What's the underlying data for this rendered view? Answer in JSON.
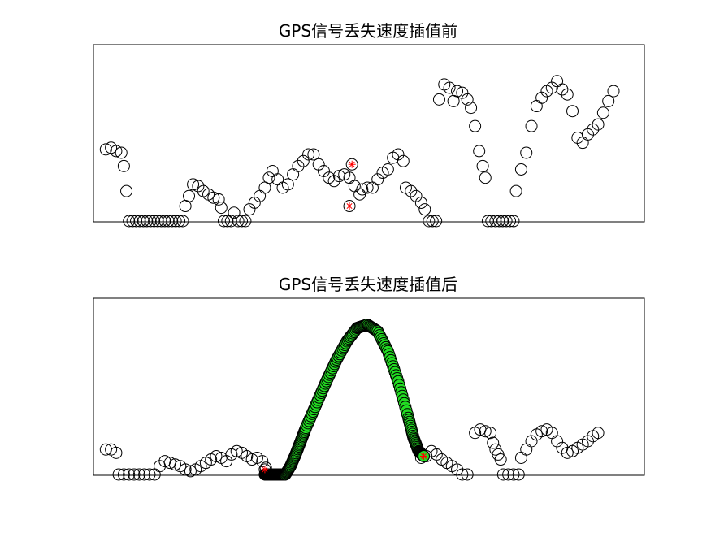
{
  "chart_data": [
    {
      "type": "scatter",
      "title": "GPS信号丢失速度插值前",
      "xlim": [
        0,
        10
      ],
      "ylim": [
        0,
        10
      ],
      "marker": "circle-open",
      "colors": {
        "marker": "#000000",
        "highlight": "#ff0000"
      },
      "series": [
        {
          "points": [
            [
              0.1,
              4.3
            ],
            [
              0.2,
              4.4
            ],
            [
              0.3,
              4.2
            ],
            [
              0.4,
              4.1
            ],
            [
              0.45,
              3.3
            ],
            [
              0.5,
              1.8
            ],
            [
              0.55,
              0
            ],
            [
              0.62,
              0
            ],
            [
              0.69,
              0
            ],
            [
              0.76,
              0
            ],
            [
              0.83,
              0
            ],
            [
              0.9,
              0
            ],
            [
              0.97,
              0
            ],
            [
              1.04,
              0
            ],
            [
              1.11,
              0
            ],
            [
              1.18,
              0
            ],
            [
              1.25,
              0
            ],
            [
              1.32,
              0
            ],
            [
              1.39,
              0
            ],
            [
              1.46,
              0
            ],
            [
              1.53,
              0
            ],
            [
              1.6,
              0
            ],
            [
              1.65,
              0.9
            ],
            [
              1.72,
              1.5
            ],
            [
              1.8,
              2.2
            ],
            [
              1.9,
              2.1
            ],
            [
              2.0,
              1.8
            ],
            [
              2.1,
              1.6
            ],
            [
              2.2,
              1.4
            ],
            [
              2.3,
              1.3
            ],
            [
              2.35,
              0.8
            ],
            [
              2.4,
              0
            ],
            [
              2.47,
              0
            ],
            [
              2.54,
              0
            ],
            [
              2.6,
              0.5
            ],
            [
              2.68,
              0
            ],
            [
              2.75,
              0
            ],
            [
              2.82,
              0
            ],
            [
              2.9,
              0.7
            ],
            [
              3.0,
              1.1
            ],
            [
              3.1,
              1.5
            ],
            [
              3.2,
              2.0
            ],
            [
              3.28,
              2.6
            ],
            [
              3.35,
              3.0
            ],
            [
              3.45,
              2.5
            ],
            [
              3.55,
              2.0
            ],
            [
              3.65,
              2.2
            ],
            [
              3.75,
              2.8
            ],
            [
              3.85,
              3.3
            ],
            [
              3.95,
              3.6
            ],
            [
              4.05,
              4.0
            ],
            [
              4.15,
              4.0
            ],
            [
              4.25,
              3.4
            ],
            [
              4.35,
              3.0
            ],
            [
              4.45,
              2.6
            ],
            [
              4.55,
              2.4
            ],
            [
              4.65,
              2.7
            ],
            [
              4.75,
              2.8
            ],
            [
              4.85,
              2.6
            ],
            [
              4.95,
              2.1
            ],
            [
              5.05,
              1.6
            ],
            [
              5.1,
              1.9
            ],
            [
              5.2,
              2.0
            ],
            [
              5.3,
              2.0
            ],
            [
              5.4,
              2.5
            ],
            [
              5.5,
              2.9
            ],
            [
              5.6,
              3.1
            ],
            [
              5.7,
              3.8
            ],
            [
              5.8,
              4.0
            ],
            [
              5.9,
              3.6
            ],
            [
              5.95,
              2.0
            ],
            [
              6.05,
              1.8
            ],
            [
              6.15,
              1.5
            ],
            [
              6.25,
              1.1
            ],
            [
              6.32,
              0.7
            ],
            [
              6.4,
              0
            ],
            [
              6.47,
              0
            ],
            [
              6.54,
              0
            ],
            [
              6.6,
              7.3
            ],
            [
              6.7,
              8.2
            ],
            [
              6.8,
              8.0
            ],
            [
              6.88,
              7.2
            ],
            [
              6.95,
              7.8
            ],
            [
              7.05,
              7.7
            ],
            [
              7.15,
              7.3
            ],
            [
              7.22,
              6.8
            ],
            [
              7.3,
              5.7
            ],
            [
              7.38,
              4.2
            ],
            [
              7.45,
              3.3
            ],
            [
              7.5,
              2.6
            ],
            [
              7.55,
              0
            ],
            [
              7.62,
              0
            ],
            [
              7.7,
              0
            ],
            [
              7.77,
              0
            ],
            [
              7.84,
              0
            ],
            [
              7.91,
              0
            ],
            [
              7.98,
              0
            ],
            [
              8.05,
              0
            ],
            [
              8.1,
              1.8
            ],
            [
              8.2,
              3.1
            ],
            [
              8.3,
              4.1
            ],
            [
              8.4,
              5.7
            ],
            [
              8.5,
              6.9
            ],
            [
              8.6,
              7.4
            ],
            [
              8.7,
              7.8
            ],
            [
              8.8,
              8.0
            ],
            [
              8.9,
              8.4
            ],
            [
              9.0,
              7.9
            ],
            [
              9.1,
              7.6
            ],
            [
              9.2,
              6.6
            ],
            [
              9.3,
              5.0
            ],
            [
              9.4,
              4.7
            ],
            [
              9.5,
              5.2
            ],
            [
              9.6,
              5.5
            ],
            [
              9.7,
              5.8
            ],
            [
              9.8,
              6.5
            ],
            [
              9.9,
              7.2
            ],
            [
              10.0,
              7.8
            ]
          ]
        },
        {
          "highlight": true,
          "points": [
            [
              4.9,
              3.4
            ],
            [
              4.85,
              0.9
            ]
          ]
        }
      ]
    },
    {
      "type": "scatter",
      "title": "GPS信号丢失速度插值后",
      "xlim": [
        0,
        10
      ],
      "ylim": [
        0,
        10
      ],
      "marker": "circle-open",
      "colors": {
        "marker": "#000000",
        "interpolated": "#22dd22",
        "highlight": "#ff0000"
      },
      "series": [
        {
          "points": [
            [
              0.1,
              1.5
            ],
            [
              0.2,
              1.5
            ],
            [
              0.3,
              1.3
            ],
            [
              0.35,
              0
            ],
            [
              0.45,
              0
            ],
            [
              0.55,
              0
            ],
            [
              0.65,
              0
            ],
            [
              0.75,
              0
            ],
            [
              0.85,
              0
            ],
            [
              0.95,
              0
            ],
            [
              1.05,
              0
            ],
            [
              1.15,
              0.5
            ],
            [
              1.25,
              0.8
            ],
            [
              1.35,
              0.7
            ],
            [
              1.45,
              0.6
            ],
            [
              1.55,
              0.5
            ],
            [
              1.65,
              0.3
            ],
            [
              1.75,
              0.2
            ],
            [
              1.85,
              0.3
            ],
            [
              1.95,
              0.5
            ],
            [
              2.05,
              0.7
            ],
            [
              2.15,
              0.9
            ],
            [
              2.25,
              1.1
            ],
            [
              2.35,
              1.0
            ],
            [
              2.45,
              0.8
            ],
            [
              2.55,
              1.2
            ],
            [
              2.65,
              1.4
            ],
            [
              2.75,
              1.3
            ],
            [
              2.85,
              1.1
            ],
            [
              2.95,
              0.9
            ],
            [
              3.05,
              1.0
            ],
            [
              3.15,
              0.8
            ],
            [
              3.22,
              0.4
            ],
            [
              6.25,
              1.0
            ],
            [
              6.35,
              1.1
            ],
            [
              6.45,
              1.4
            ],
            [
              6.55,
              1.2
            ],
            [
              6.65,
              0.9
            ],
            [
              6.75,
              0.7
            ],
            [
              6.85,
              0.5
            ],
            [
              6.95,
              0.3
            ],
            [
              7.05,
              0
            ],
            [
              7.15,
              0
            ],
            [
              7.3,
              2.5
            ],
            [
              7.4,
              2.7
            ],
            [
              7.5,
              2.6
            ],
            [
              7.6,
              2.5
            ],
            [
              7.65,
              1.9
            ],
            [
              7.7,
              1.5
            ],
            [
              7.75,
              1.2
            ],
            [
              7.8,
              0.9
            ],
            [
              7.85,
              0
            ],
            [
              7.95,
              0
            ],
            [
              8.05,
              0
            ],
            [
              8.15,
              0
            ],
            [
              8.2,
              1.0
            ],
            [
              8.3,
              1.5
            ],
            [
              8.4,
              2.0
            ],
            [
              8.5,
              2.4
            ],
            [
              8.6,
              2.6
            ],
            [
              8.7,
              2.7
            ],
            [
              8.8,
              2.5
            ],
            [
              8.9,
              2.0
            ],
            [
              9.0,
              1.6
            ],
            [
              9.1,
              1.3
            ],
            [
              9.2,
              1.4
            ],
            [
              9.3,
              1.6
            ],
            [
              9.4,
              1.8
            ],
            [
              9.5,
              2.0
            ],
            [
              9.6,
              2.3
            ],
            [
              9.7,
              2.5
            ]
          ]
        },
        {
          "interpolated": true,
          "curve": {
            "x": [
              3.2,
              3.3,
              3.4,
              3.5,
              3.6,
              3.7,
              3.8,
              3.9,
              4.0,
              4.2,
              4.4,
              4.6,
              4.8,
              5.0,
              5.2,
              5.4,
              5.6,
              5.8,
              6.0,
              6.1,
              6.2,
              6.3
            ],
            "y": [
              0,
              0,
              0,
              0,
              0,
              0.5,
              1.2,
              2.0,
              2.8,
              4.2,
              5.6,
              6.9,
              8.0,
              8.8,
              9.0,
              8.6,
              7.4,
              5.6,
              3.4,
              2.2,
              1.4,
              1.1
            ]
          }
        },
        {
          "highlight": true,
          "points": [
            [
              3.2,
              0.3
            ],
            [
              6.3,
              1.1
            ]
          ]
        }
      ]
    }
  ]
}
